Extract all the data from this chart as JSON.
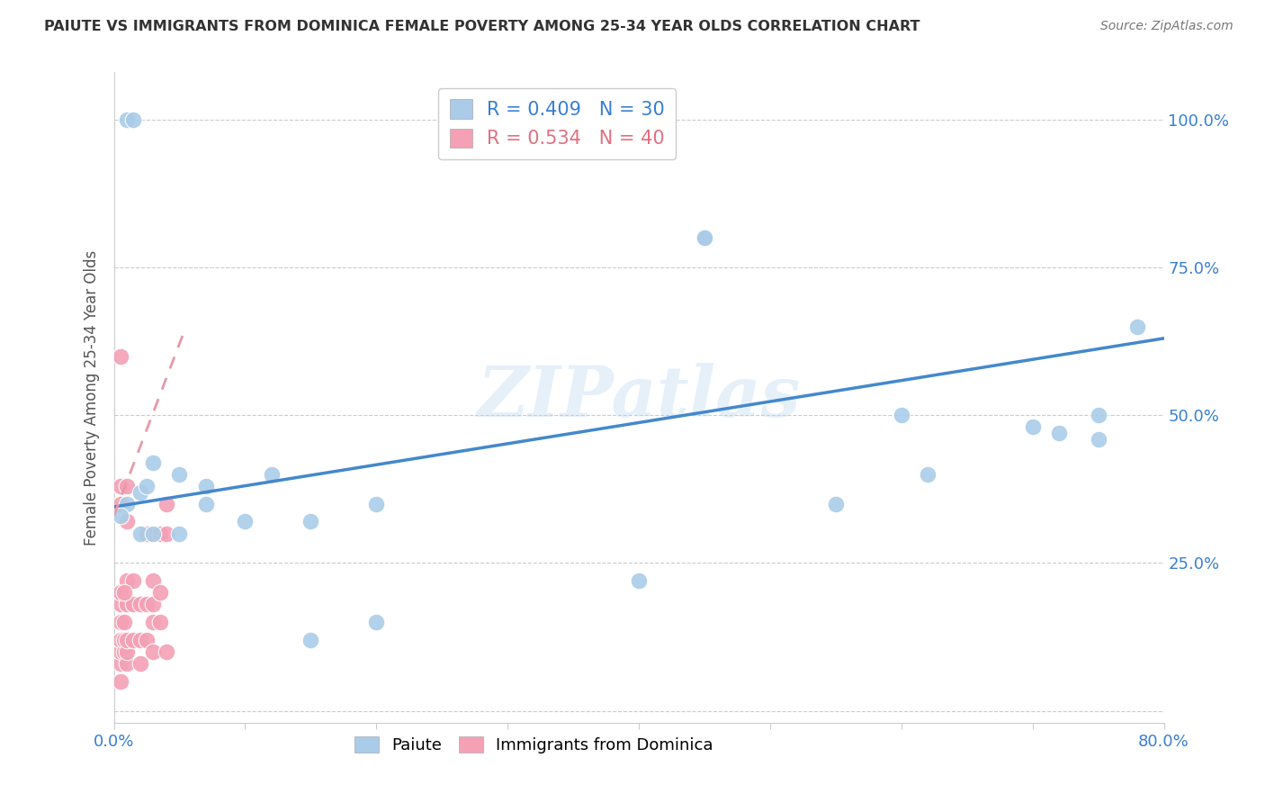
{
  "title": "PAIUTE VS IMMIGRANTS FROM DOMINICA FEMALE POVERTY AMONG 25-34 YEAR OLDS CORRELATION CHART",
  "source": "Source: ZipAtlas.com",
  "ylabel": "Female Poverty Among 25-34 Year Olds",
  "xlim": [
    0,
    0.8
  ],
  "ylim": [
    -0.02,
    1.08
  ],
  "ytick_positions": [
    0.0,
    0.25,
    0.5,
    0.75,
    1.0
  ],
  "yticklabels": [
    "",
    "25.0%",
    "50.0%",
    "75.0%",
    "100.0%"
  ],
  "legend_label1": "Paiute",
  "legend_label2": "Immigrants from Dominica",
  "paiute_color": "#aacce8",
  "dominica_color": "#f4a0b5",
  "paiute_line_color": "#4488cc",
  "dominica_line_color": "#e898aa",
  "background_color": "#ffffff",
  "watermark": "ZIPatlas",
  "paiute_x": [
    0.01,
    0.015,
    0.01,
    0.02,
    0.005,
    0.025,
    0.03,
    0.05,
    0.07,
    0.07,
    0.12,
    0.2,
    0.45,
    0.45,
    0.55,
    0.62,
    0.7,
    0.72,
    0.75,
    0.75,
    0.1,
    0.15,
    0.2,
    0.02,
    0.03,
    0.05,
    0.4,
    0.15,
    0.6,
    0.78
  ],
  "paiute_y": [
    1.0,
    1.0,
    0.35,
    0.37,
    0.33,
    0.38,
    0.42,
    0.4,
    0.38,
    0.35,
    0.4,
    0.35,
    0.8,
    0.8,
    0.35,
    0.4,
    0.48,
    0.47,
    0.5,
    0.46,
    0.32,
    0.32,
    0.15,
    0.3,
    0.3,
    0.3,
    0.22,
    0.12,
    0.5,
    0.65
  ],
  "dominica_x": [
    0.005,
    0.005,
    0.005,
    0.005,
    0.005,
    0.005,
    0.005,
    0.008,
    0.008,
    0.008,
    0.01,
    0.01,
    0.01,
    0.01,
    0.01,
    0.015,
    0.015,
    0.015,
    0.02,
    0.02,
    0.02,
    0.025,
    0.025,
    0.025,
    0.03,
    0.03,
    0.03,
    0.03,
    0.035,
    0.035,
    0.035,
    0.04,
    0.04,
    0.04,
    0.005,
    0.005,
    0.01,
    0.005,
    0.008,
    0.01
  ],
  "dominica_y": [
    0.05,
    0.08,
    0.1,
    0.12,
    0.15,
    0.18,
    0.2,
    0.1,
    0.12,
    0.15,
    0.08,
    0.1,
    0.12,
    0.18,
    0.22,
    0.12,
    0.18,
    0.22,
    0.08,
    0.12,
    0.18,
    0.12,
    0.18,
    0.3,
    0.1,
    0.15,
    0.18,
    0.22,
    0.15,
    0.2,
    0.3,
    0.1,
    0.3,
    0.35,
    0.6,
    0.38,
    0.38,
    0.35,
    0.2,
    0.32
  ],
  "paiute_line_x0": 0.0,
  "paiute_line_y0": 0.345,
  "paiute_line_x1": 0.8,
  "paiute_line_y1": 0.63,
  "dominica_line_x0": 0.0,
  "dominica_line_y0": 0.33,
  "dominica_line_x1": 0.055,
  "dominica_line_y1": 0.65
}
